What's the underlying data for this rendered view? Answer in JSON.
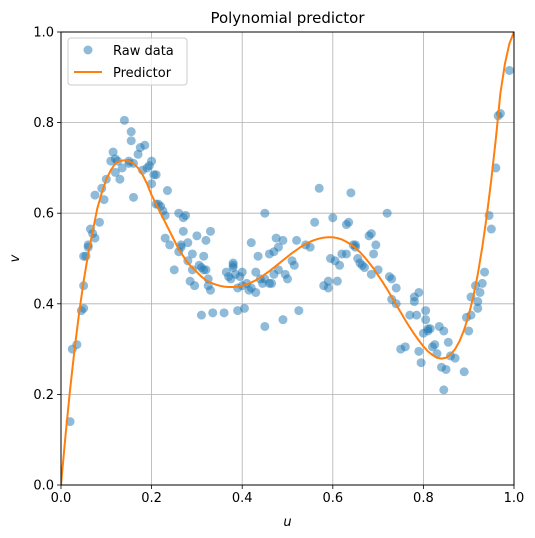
{
  "chart_data": {
    "type": "scatter",
    "title": "Polynomial predictor",
    "xlabel": "u",
    "ylabel": "v",
    "xlim": [
      0.0,
      1.0
    ],
    "ylim": [
      0.0,
      1.0
    ],
    "x_ticks": [
      "0.0",
      "0.2",
      "0.4",
      "0.6",
      "0.8",
      "1.0"
    ],
    "y_ticks": [
      "0.0",
      "0.2",
      "0.4",
      "0.6",
      "0.8",
      "1.0"
    ],
    "grid": true,
    "legend_position": "upper-left",
    "series": [
      {
        "name": "Raw data",
        "kind": "scatter",
        "color": "#1f77b4",
        "points": [
          [
            0.02,
            0.14
          ],
          [
            0.025,
            0.3
          ],
          [
            0.035,
            0.31
          ],
          [
            0.045,
            0.385
          ],
          [
            0.05,
            0.39
          ],
          [
            0.05,
            0.44
          ],
          [
            0.05,
            0.505
          ],
          [
            0.055,
            0.505
          ],
          [
            0.06,
            0.525
          ],
          [
            0.06,
            0.53
          ],
          [
            0.065,
            0.565
          ],
          [
            0.07,
            0.555
          ],
          [
            0.075,
            0.545
          ],
          [
            0.075,
            0.64
          ],
          [
            0.085,
            0.58
          ],
          [
            0.09,
            0.655
          ],
          [
            0.095,
            0.63
          ],
          [
            0.1,
            0.675
          ],
          [
            0.11,
            0.715
          ],
          [
            0.115,
            0.735
          ],
          [
            0.12,
            0.72
          ],
          [
            0.12,
            0.69
          ],
          [
            0.125,
            0.715
          ],
          [
            0.13,
            0.675
          ],
          [
            0.135,
            0.7
          ],
          [
            0.14,
            0.805
          ],
          [
            0.15,
            0.715
          ],
          [
            0.15,
            0.71
          ],
          [
            0.155,
            0.78
          ],
          [
            0.155,
            0.76
          ],
          [
            0.16,
            0.635
          ],
          [
            0.16,
            0.71
          ],
          [
            0.17,
            0.73
          ],
          [
            0.175,
            0.745
          ],
          [
            0.18,
            0.695
          ],
          [
            0.185,
            0.75
          ],
          [
            0.19,
            0.7
          ],
          [
            0.195,
            0.705
          ],
          [
            0.2,
            0.715
          ],
          [
            0.2,
            0.665
          ],
          [
            0.205,
            0.685
          ],
          [
            0.21,
            0.62
          ],
          [
            0.21,
            0.685
          ],
          [
            0.215,
            0.62
          ],
          [
            0.22,
            0.615
          ],
          [
            0.225,
            0.605
          ],
          [
            0.23,
            0.595
          ],
          [
            0.23,
            0.545
          ],
          [
            0.235,
            0.65
          ],
          [
            0.24,
            0.53
          ],
          [
            0.25,
            0.475
          ],
          [
            0.26,
            0.515
          ],
          [
            0.26,
            0.6
          ],
          [
            0.265,
            0.525
          ],
          [
            0.265,
            0.53
          ],
          [
            0.27,
            0.56
          ],
          [
            0.27,
            0.59
          ],
          [
            0.275,
            0.595
          ],
          [
            0.28,
            0.535
          ],
          [
            0.28,
            0.495
          ],
          [
            0.285,
            0.45
          ],
          [
            0.29,
            0.51
          ],
          [
            0.29,
            0.475
          ],
          [
            0.295,
            0.44
          ],
          [
            0.3,
            0.55
          ],
          [
            0.305,
            0.485
          ],
          [
            0.31,
            0.375
          ],
          [
            0.31,
            0.48
          ],
          [
            0.315,
            0.505
          ],
          [
            0.315,
            0.475
          ],
          [
            0.32,
            0.475
          ],
          [
            0.32,
            0.54
          ],
          [
            0.325,
            0.44
          ],
          [
            0.325,
            0.455
          ],
          [
            0.33,
            0.43
          ],
          [
            0.33,
            0.56
          ],
          [
            0.335,
            0.38
          ],
          [
            0.36,
            0.38
          ],
          [
            0.365,
            0.47
          ],
          [
            0.37,
            0.46
          ],
          [
            0.375,
            0.455
          ],
          [
            0.38,
            0.48
          ],
          [
            0.38,
            0.49
          ],
          [
            0.38,
            0.485
          ],
          [
            0.385,
            0.465
          ],
          [
            0.39,
            0.435
          ],
          [
            0.39,
            0.385
          ],
          [
            0.395,
            0.46
          ],
          [
            0.4,
            0.44
          ],
          [
            0.4,
            0.47
          ],
          [
            0.405,
            0.39
          ],
          [
            0.41,
            0.445
          ],
          [
            0.415,
            0.43
          ],
          [
            0.42,
            0.535
          ],
          [
            0.42,
            0.435
          ],
          [
            0.43,
            0.425
          ],
          [
            0.43,
            0.47
          ],
          [
            0.435,
            0.505
          ],
          [
            0.44,
            0.455
          ],
          [
            0.445,
            0.445
          ],
          [
            0.45,
            0.455
          ],
          [
            0.45,
            0.6
          ],
          [
            0.45,
            0.35
          ],
          [
            0.46,
            0.51
          ],
          [
            0.46,
            0.445
          ],
          [
            0.465,
            0.445
          ],
          [
            0.47,
            0.465
          ],
          [
            0.47,
            0.515
          ],
          [
            0.475,
            0.545
          ],
          [
            0.48,
            0.475
          ],
          [
            0.48,
            0.525
          ],
          [
            0.49,
            0.54
          ],
          [
            0.49,
            0.365
          ],
          [
            0.495,
            0.465
          ],
          [
            0.5,
            0.455
          ],
          [
            0.51,
            0.495
          ],
          [
            0.515,
            0.485
          ],
          [
            0.52,
            0.54
          ],
          [
            0.525,
            0.385
          ],
          [
            0.54,
            0.53
          ],
          [
            0.55,
            0.525
          ],
          [
            0.56,
            0.58
          ],
          [
            0.57,
            0.655
          ],
          [
            0.58,
            0.44
          ],
          [
            0.59,
            0.45
          ],
          [
            0.59,
            0.435
          ],
          [
            0.595,
            0.5
          ],
          [
            0.6,
            0.59
          ],
          [
            0.605,
            0.495
          ],
          [
            0.61,
            0.45
          ],
          [
            0.615,
            0.485
          ],
          [
            0.62,
            0.51
          ],
          [
            0.63,
            0.575
          ],
          [
            0.63,
            0.51
          ],
          [
            0.635,
            0.58
          ],
          [
            0.64,
            0.645
          ],
          [
            0.645,
            0.53
          ],
          [
            0.65,
            0.525
          ],
          [
            0.65,
            0.53
          ],
          [
            0.655,
            0.5
          ],
          [
            0.66,
            0.49
          ],
          [
            0.665,
            0.485
          ],
          [
            0.67,
            0.48
          ],
          [
            0.68,
            0.55
          ],
          [
            0.685,
            0.555
          ],
          [
            0.685,
            0.465
          ],
          [
            0.69,
            0.51
          ],
          [
            0.695,
            0.53
          ],
          [
            0.7,
            0.475
          ],
          [
            0.72,
            0.6
          ],
          [
            0.725,
            0.46
          ],
          [
            0.73,
            0.455
          ],
          [
            0.73,
            0.41
          ],
          [
            0.74,
            0.435
          ],
          [
            0.74,
            0.4
          ],
          [
            0.75,
            0.3
          ],
          [
            0.76,
            0.305
          ],
          [
            0.77,
            0.375
          ],
          [
            0.78,
            0.415
          ],
          [
            0.78,
            0.405
          ],
          [
            0.785,
            0.375
          ],
          [
            0.79,
            0.425
          ],
          [
            0.79,
            0.295
          ],
          [
            0.795,
            0.27
          ],
          [
            0.8,
            0.335
          ],
          [
            0.805,
            0.385
          ],
          [
            0.805,
            0.365
          ],
          [
            0.81,
            0.34
          ],
          [
            0.81,
            0.345
          ],
          [
            0.815,
            0.345
          ],
          [
            0.82,
            0.305
          ],
          [
            0.825,
            0.31
          ],
          [
            0.83,
            0.29
          ],
          [
            0.835,
            0.35
          ],
          [
            0.84,
            0.26
          ],
          [
            0.845,
            0.21
          ],
          [
            0.845,
            0.34
          ],
          [
            0.85,
            0.255
          ],
          [
            0.855,
            0.315
          ],
          [
            0.86,
            0.285
          ],
          [
            0.87,
            0.28
          ],
          [
            0.89,
            0.25
          ],
          [
            0.895,
            0.37
          ],
          [
            0.9,
            0.34
          ],
          [
            0.905,
            0.375
          ],
          [
            0.905,
            0.415
          ],
          [
            0.915,
            0.44
          ],
          [
            0.92,
            0.39
          ],
          [
            0.92,
            0.405
          ],
          [
            0.925,
            0.425
          ],
          [
            0.93,
            0.445
          ],
          [
            0.935,
            0.47
          ],
          [
            0.945,
            0.595
          ],
          [
            0.95,
            0.565
          ],
          [
            0.96,
            0.7
          ],
          [
            0.965,
            0.815
          ],
          [
            0.97,
            0.82
          ],
          [
            0.99,
            0.915
          ]
        ]
      },
      {
        "name": "Predictor",
        "kind": "line",
        "color": "#ff7f0e",
        "x": [
          0.0,
          0.01,
          0.02,
          0.03,
          0.04,
          0.05,
          0.06,
          0.07,
          0.08,
          0.09,
          0.1,
          0.11,
          0.12,
          0.13,
          0.14,
          0.15,
          0.16,
          0.17,
          0.18,
          0.19,
          0.2,
          0.21,
          0.22,
          0.23,
          0.24,
          0.25,
          0.26,
          0.27,
          0.28,
          0.29,
          0.3,
          0.31,
          0.32,
          0.33,
          0.34,
          0.35,
          0.36,
          0.37,
          0.38,
          0.39,
          0.4,
          0.41,
          0.42,
          0.43,
          0.44,
          0.45,
          0.46,
          0.47,
          0.48,
          0.49,
          0.5,
          0.51,
          0.52,
          0.53,
          0.54,
          0.55,
          0.56,
          0.57,
          0.58,
          0.59,
          0.6,
          0.61,
          0.62,
          0.63,
          0.64,
          0.65,
          0.66,
          0.67,
          0.68,
          0.69,
          0.7,
          0.71,
          0.72,
          0.73,
          0.74,
          0.75,
          0.76,
          0.77,
          0.78,
          0.79,
          0.8,
          0.81,
          0.82,
          0.83,
          0.84,
          0.85,
          0.86,
          0.87,
          0.88,
          0.89,
          0.9,
          0.91,
          0.92,
          0.93,
          0.94,
          0.95,
          0.96,
          0.97,
          0.98,
          0.99,
          1.0
        ],
        "y": [
          0.0,
          0.11,
          0.21,
          0.3,
          0.38,
          0.45,
          0.51,
          0.56,
          0.61,
          0.645,
          0.675,
          0.695,
          0.71,
          0.715,
          0.717,
          0.715,
          0.71,
          0.7,
          0.685,
          0.665,
          0.64,
          0.62,
          0.6,
          0.58,
          0.56,
          0.54,
          0.52,
          0.505,
          0.49,
          0.48,
          0.47,
          0.46,
          0.452,
          0.447,
          0.443,
          0.44,
          0.438,
          0.437,
          0.437,
          0.438,
          0.44,
          0.443,
          0.447,
          0.452,
          0.458,
          0.465,
          0.472,
          0.48,
          0.488,
          0.496,
          0.504,
          0.512,
          0.519,
          0.526,
          0.532,
          0.537,
          0.541,
          0.544,
          0.546,
          0.547,
          0.547,
          0.545,
          0.542,
          0.537,
          0.531,
          0.523,
          0.514,
          0.503,
          0.491,
          0.478,
          0.463,
          0.448,
          0.432,
          0.415,
          0.398,
          0.381,
          0.364,
          0.348,
          0.333,
          0.319,
          0.306,
          0.295,
          0.287,
          0.281,
          0.279,
          0.281,
          0.288,
          0.3,
          0.318,
          0.343,
          0.375,
          0.415,
          0.465,
          0.525,
          0.595,
          0.675,
          0.765,
          0.865,
          0.93,
          0.975,
          1.0
        ]
      }
    ]
  }
}
